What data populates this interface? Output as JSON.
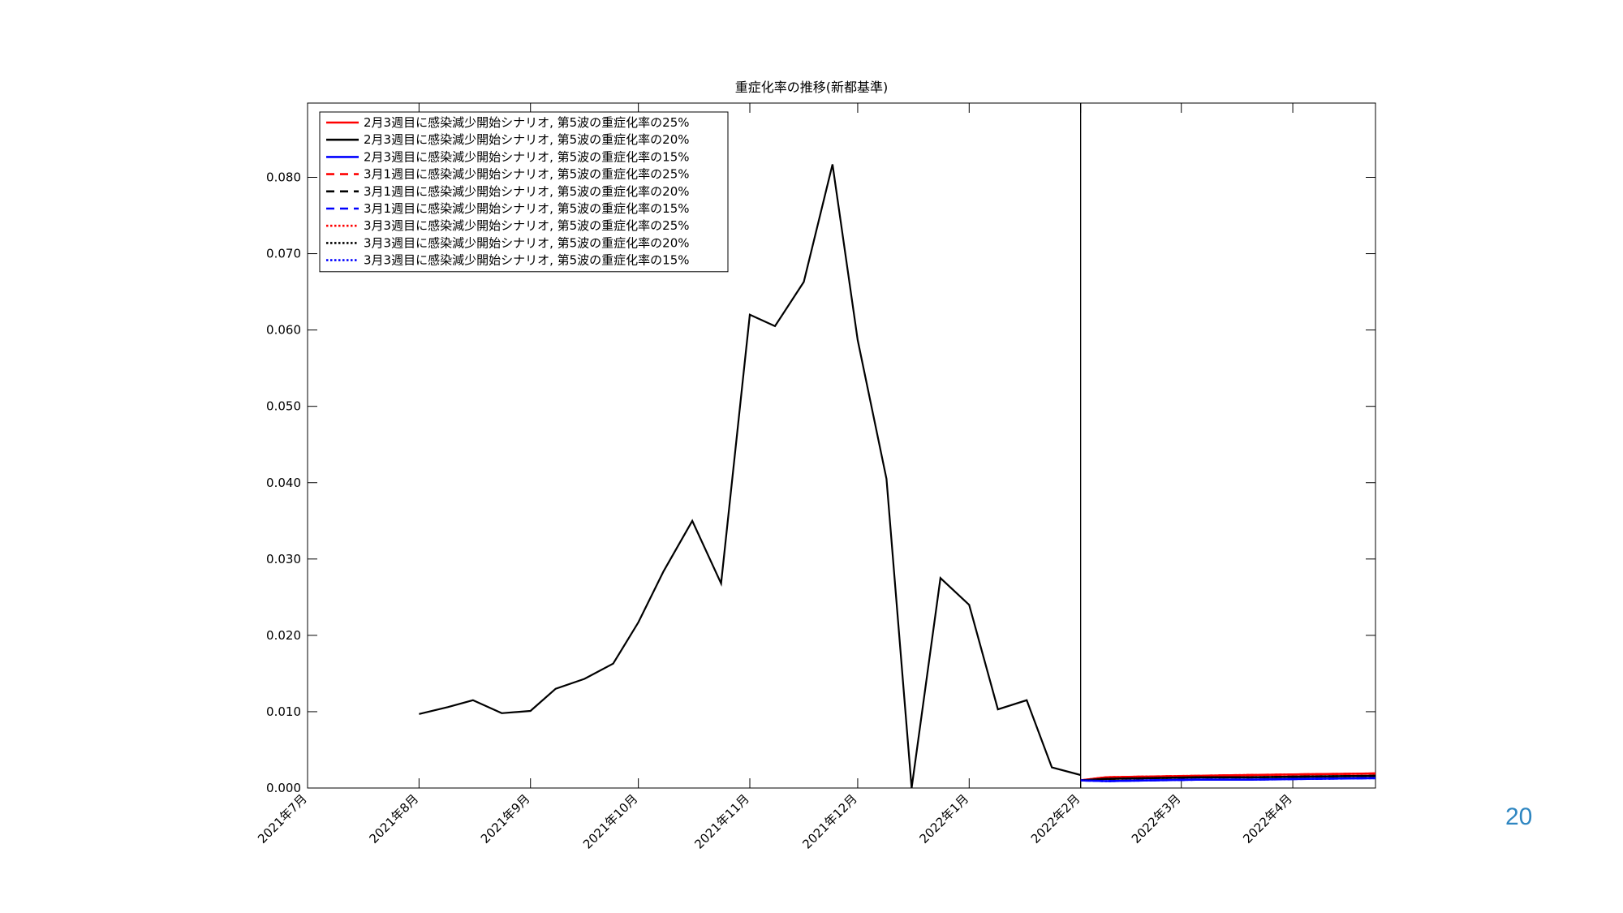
{
  "page_number": "20",
  "chart_data": {
    "type": "line",
    "title": "重症化率の推移(新都基準)",
    "xlabel": "",
    "ylabel": "",
    "x_tick_labels": [
      "2021年7月",
      "2021年8月",
      "2021年9月",
      "2021年10月",
      "2021年11月",
      "2021年12月",
      "2022年1月",
      "2022年2月",
      "2022年3月",
      "2022年4月"
    ],
    "x_tick_dates": [
      "2021-07-01",
      "2021-08-01",
      "2021-09-01",
      "2021-10-01",
      "2021-11-01",
      "2021-12-01",
      "2022-01-01",
      "2022-02-01",
      "2022-03-01",
      "2022-04-01"
    ],
    "xlim": [
      "2021-07-01",
      "2022-04-24"
    ],
    "ylim": [
      0,
      0.09
    ],
    "y_ticks": [
      0.0,
      0.01,
      0.02,
      0.03,
      0.04,
      0.05,
      0.06,
      0.07,
      0.08
    ],
    "y_tick_labels": [
      "0.000",
      "0.010",
      "0.020",
      "0.030",
      "0.040",
      "0.050",
      "0.060",
      "0.070",
      "0.080"
    ],
    "vertical_line_date": "2022-02-01",
    "grid": false,
    "legend_position": "top-left",
    "observed": {
      "x": [
        "2021-08-01",
        "2021-08-09",
        "2021-08-16",
        "2021-08-24",
        "2021-09-01",
        "2021-09-08",
        "2021-09-16",
        "2021-09-24",
        "2021-10-01",
        "2021-10-08",
        "2021-10-16",
        "2021-10-24",
        "2021-11-01",
        "2021-11-08",
        "2021-11-16",
        "2021-11-24",
        "2021-12-01",
        "2021-12-09",
        "2021-12-16",
        "2021-12-24",
        "2022-01-01",
        "2022-01-09",
        "2022-01-17",
        "2022-01-24",
        "2022-02-01"
      ],
      "y": [
        0.0097,
        0.0106,
        0.0115,
        0.0098,
        0.0101,
        0.013,
        0.0143,
        0.0163,
        0.0217,
        0.0284,
        0.035,
        0.0268,
        0.062,
        0.0605,
        0.0663,
        0.0817,
        0.0587,
        0.0405,
        0.0,
        0.0275,
        0.024,
        0.0103,
        0.0115,
        0.0027,
        0.0017
      ]
    },
    "series": [
      {
        "name": "2月3週目に感染減少開始シナリオ, 第5波の重症化率の25%",
        "color": "#ff0000",
        "dash": "solid",
        "x": [
          "2022-02-01",
          "2022-02-08",
          "2022-02-20",
          "2022-03-05",
          "2022-03-20",
          "2022-04-05",
          "2022-04-24"
        ],
        "y": [
          0.001,
          0.0014,
          0.0015,
          0.0016,
          0.0017,
          0.0018,
          0.0019
        ]
      },
      {
        "name": "2月3週目に感染減少開始シナリオ, 第5波の重症化率の20%",
        "color": "#000000",
        "dash": "solid",
        "x": [
          "2022-02-01",
          "2022-02-08",
          "2022-02-20",
          "2022-03-05",
          "2022-03-20",
          "2022-04-05",
          "2022-04-24"
        ],
        "y": [
          0.001,
          0.0012,
          0.0013,
          0.0014,
          0.0014,
          0.0015,
          0.0016
        ]
      },
      {
        "name": "2月3週目に感染減少開始シナリオ, 第5波の重症化率の15%",
        "color": "#0000ff",
        "dash": "solid",
        "x": [
          "2022-02-01",
          "2022-02-08",
          "2022-02-20",
          "2022-03-05",
          "2022-03-20",
          "2022-04-05",
          "2022-04-24"
        ],
        "y": [
          0.001,
          0.0009,
          0.001,
          0.0011,
          0.0011,
          0.0012,
          0.0013
        ]
      },
      {
        "name": "3月1週目に感染減少開始シナリオ, 第5波の重症化率の25%",
        "color": "#ff0000",
        "dash": "dashed",
        "x": [
          "2022-02-01",
          "2022-02-08",
          "2022-02-20",
          "2022-03-05",
          "2022-03-20",
          "2022-04-05",
          "2022-04-24"
        ],
        "y": [
          0.001,
          0.0014,
          0.0015,
          0.0016,
          0.0017,
          0.0018,
          0.0019
        ]
      },
      {
        "name": "3月1週目に感染減少開始シナリオ, 第5波の重症化率の20%",
        "color": "#000000",
        "dash": "dashed",
        "x": [
          "2022-02-01",
          "2022-02-08",
          "2022-02-20",
          "2022-03-05",
          "2022-03-20",
          "2022-04-05",
          "2022-04-24"
        ],
        "y": [
          0.001,
          0.0012,
          0.0013,
          0.0014,
          0.0014,
          0.0015,
          0.0016
        ]
      },
      {
        "name": "3月1週目に感染減少開始シナリオ, 第5波の重症化率の15%",
        "color": "#0000ff",
        "dash": "dashed",
        "x": [
          "2022-02-01",
          "2022-02-08",
          "2022-02-20",
          "2022-03-05",
          "2022-03-20",
          "2022-04-05",
          "2022-04-24"
        ],
        "y": [
          0.001,
          0.0009,
          0.001,
          0.0011,
          0.0011,
          0.0012,
          0.0013
        ]
      },
      {
        "name": "3月3週目に感染減少開始シナリオ, 第5波の重症化率の25%",
        "color": "#ff0000",
        "dash": "dotted",
        "x": [
          "2022-02-01",
          "2022-02-08",
          "2022-02-20",
          "2022-03-05",
          "2022-03-20",
          "2022-04-05",
          "2022-04-24"
        ],
        "y": [
          0.001,
          0.0014,
          0.0015,
          0.0016,
          0.0017,
          0.0018,
          0.0019
        ]
      },
      {
        "name": "3月3週目に感染減少開始シナリオ, 第5波の重症化率の20%",
        "color": "#000000",
        "dash": "dotted",
        "x": [
          "2022-02-01",
          "2022-02-08",
          "2022-02-20",
          "2022-03-05",
          "2022-03-20",
          "2022-04-05",
          "2022-04-24"
        ],
        "y": [
          0.001,
          0.0012,
          0.0013,
          0.0014,
          0.0014,
          0.0015,
          0.0016
        ]
      },
      {
        "name": "3月3週目に感染減少開始シナリオ, 第5波の重症化率の15%",
        "color": "#0000ff",
        "dash": "dotted",
        "x": [
          "2022-02-01",
          "2022-02-08",
          "2022-02-20",
          "2022-03-05",
          "2022-03-20",
          "2022-04-05",
          "2022-04-24"
        ],
        "y": [
          0.001,
          0.0009,
          0.001,
          0.0011,
          0.0011,
          0.0012,
          0.0013
        ]
      }
    ]
  }
}
